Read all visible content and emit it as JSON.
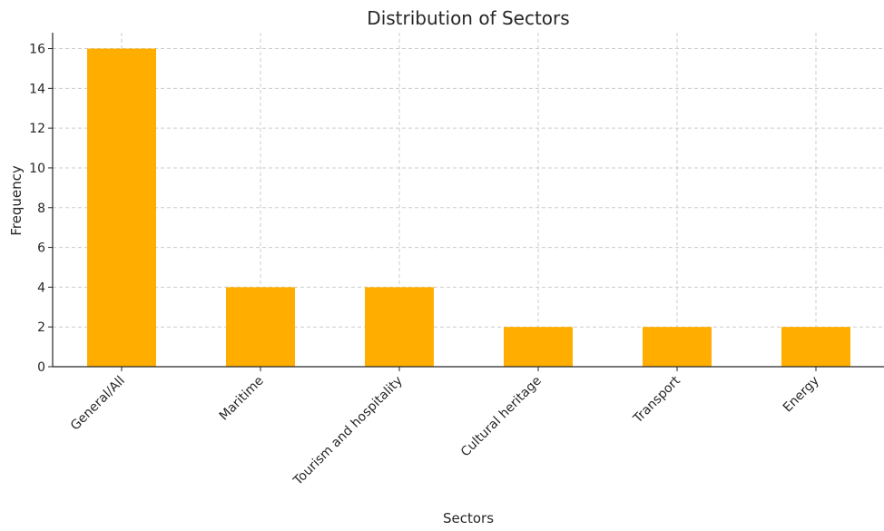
{
  "chart_data": {
    "type": "bar",
    "title": "Distribution of Sectors",
    "xlabel": "Sectors",
    "ylabel": "Frequency",
    "categories": [
      "General/All",
      "Maritime",
      "Tourism and hospitality",
      "Cultural heritage",
      "Transport",
      "Energy"
    ],
    "values": [
      16,
      4,
      4,
      2,
      2,
      2
    ],
    "ylim": [
      0,
      16.8
    ],
    "yticks": [
      0,
      2,
      4,
      6,
      8,
      10,
      12,
      14,
      16
    ],
    "grid": true,
    "bar_color": "#FFAE00",
    "tick_label_rotation": -45
  }
}
